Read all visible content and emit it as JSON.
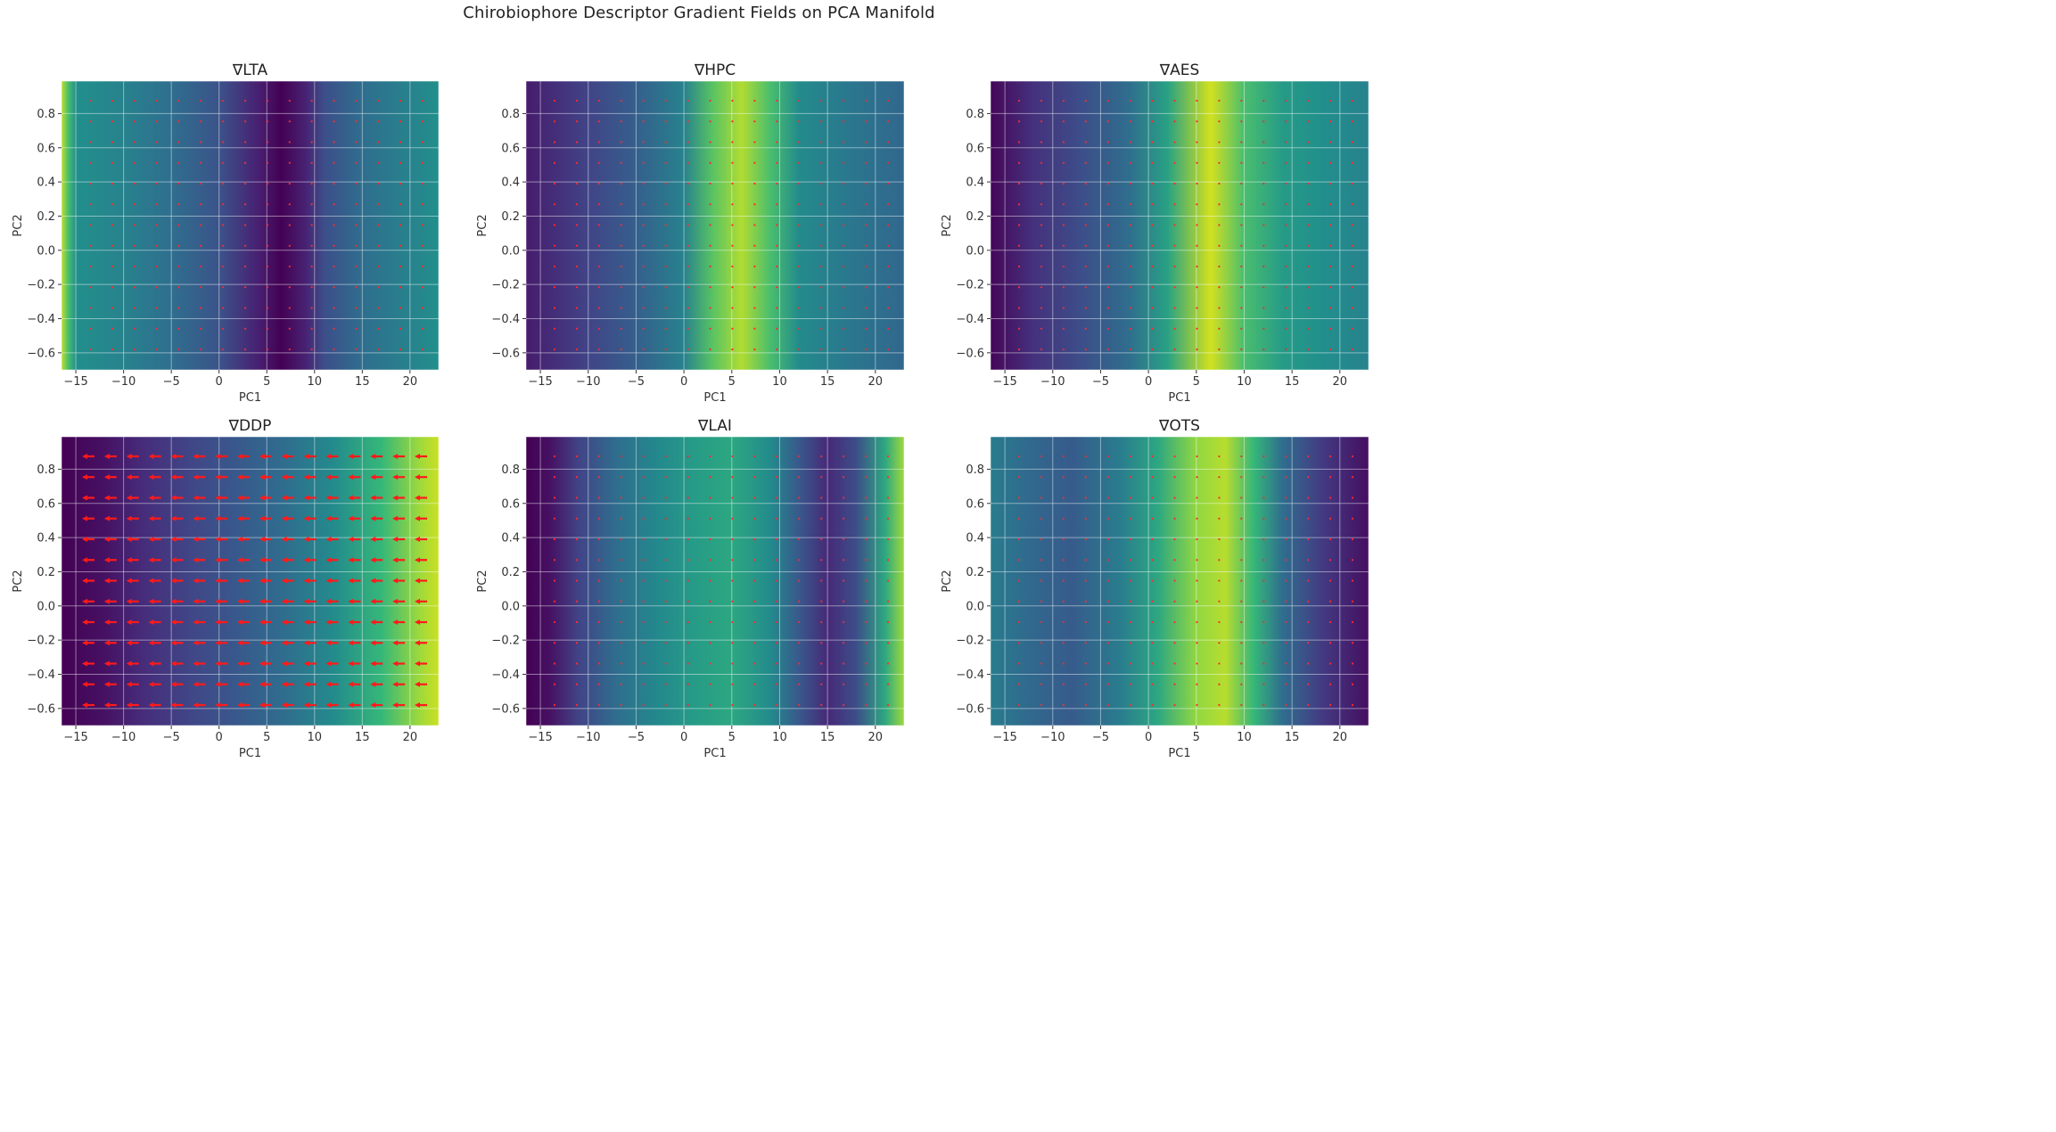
{
  "figure": {
    "title": "Chirobiophore Descriptor Gradient Fields on PCA Manifold"
  },
  "chart_data": [
    {
      "type": "heatmap",
      "title": "∇LTA",
      "xlabel": "PC1",
      "ylabel": "PC2",
      "xlim": [
        -16.5,
        23
      ],
      "ylim": [
        -0.7,
        0.99
      ],
      "x_ticks": [
        "−15",
        "−10",
        "−5",
        "0",
        "5",
        "10",
        "15",
        "20"
      ],
      "y_ticks": [
        "−0.6",
        "−0.4",
        "−0.2",
        "0.0",
        "0.2",
        "0.4",
        "0.6",
        "0.8"
      ],
      "grid": true,
      "colormap": "viridis",
      "intensity_profile": [
        {
          "x": -16.5,
          "value": 0.95
        },
        {
          "x": -15.8,
          "value": 0.78
        },
        {
          "x": -15,
          "value": 0.62
        },
        {
          "x": -10,
          "value": 0.55
        },
        {
          "x": -5,
          "value": 0.45
        },
        {
          "x": 0,
          "value": 0.32
        },
        {
          "x": 4,
          "value": 0.12
        },
        {
          "x": 6.5,
          "value": 0.0
        },
        {
          "x": 9,
          "value": 0.12
        },
        {
          "x": 11,
          "value": 0.3
        },
        {
          "x": 15,
          "value": 0.45
        },
        {
          "x": 20,
          "value": 0.55
        },
        {
          "x": 23,
          "value": 0.62
        }
      ],
      "vectors": "dots"
    },
    {
      "type": "heatmap",
      "title": "∇HPC",
      "xlabel": "PC1",
      "ylabel": "PC2",
      "xlim": [
        -16.5,
        23
      ],
      "ylim": [
        -0.7,
        0.99
      ],
      "x_ticks": [
        "−15",
        "−10",
        "−5",
        "0",
        "5",
        "10",
        "15",
        "20"
      ],
      "y_ticks": [
        "−0.6",
        "−0.4",
        "−0.2",
        "0.0",
        "0.2",
        "0.4",
        "0.6",
        "0.8"
      ],
      "grid": true,
      "colormap": "viridis",
      "intensity_profile": [
        {
          "x": -16.5,
          "value": 0.1
        },
        {
          "x": -10,
          "value": 0.25
        },
        {
          "x": -5,
          "value": 0.38
        },
        {
          "x": 0,
          "value": 0.55
        },
        {
          "x": 3,
          "value": 0.8
        },
        {
          "x": 6,
          "value": 0.93
        },
        {
          "x": 9,
          "value": 0.78
        },
        {
          "x": 12,
          "value": 0.6
        },
        {
          "x": 17,
          "value": 0.5
        },
        {
          "x": 23,
          "value": 0.42
        }
      ],
      "vectors": "dots"
    },
    {
      "type": "heatmap",
      "title": "∇AES",
      "xlabel": "PC1",
      "ylabel": "PC2",
      "xlim": [
        -16.5,
        23
      ],
      "ylim": [
        -0.7,
        0.99
      ],
      "x_ticks": [
        "−15",
        "−10",
        "−5",
        "0",
        "5",
        "10",
        "15",
        "20"
      ],
      "y_ticks": [
        "−0.6",
        "−0.4",
        "−0.2",
        "0.0",
        "0.2",
        "0.4",
        "0.6",
        "0.8"
      ],
      "grid": true,
      "colormap": "viridis",
      "intensity_profile": [
        {
          "x": -16.5,
          "value": 0.02
        },
        {
          "x": -12,
          "value": 0.18
        },
        {
          "x": -7,
          "value": 0.3
        },
        {
          "x": -2,
          "value": 0.45
        },
        {
          "x": 2,
          "value": 0.68
        },
        {
          "x": 6.5,
          "value": 0.98
        },
        {
          "x": 10,
          "value": 0.78
        },
        {
          "x": 14,
          "value": 0.66
        },
        {
          "x": 18,
          "value": 0.62
        },
        {
          "x": 23,
          "value": 0.55
        }
      ],
      "vectors": "dots"
    },
    {
      "type": "heatmap",
      "title": "∇DDP",
      "xlabel": "PC1",
      "ylabel": "PC2",
      "xlim": [
        -16.5,
        23
      ],
      "ylim": [
        -0.7,
        0.99
      ],
      "x_ticks": [
        "−15",
        "−10",
        "−5",
        "0",
        "5",
        "10",
        "15",
        "20"
      ],
      "y_ticks": [
        "−0.6",
        "−0.4",
        "−0.2",
        "0.0",
        "0.2",
        "0.4",
        "0.6",
        "0.8"
      ],
      "grid": true,
      "colormap": "viridis",
      "intensity_profile": [
        {
          "x": -16.5,
          "value": 0.0
        },
        {
          "x": -12,
          "value": 0.06
        },
        {
          "x": -8,
          "value": 0.16
        },
        {
          "x": -3,
          "value": 0.26
        },
        {
          "x": 2,
          "value": 0.35
        },
        {
          "x": 7,
          "value": 0.45
        },
        {
          "x": 12,
          "value": 0.6
        },
        {
          "x": 17,
          "value": 0.75
        },
        {
          "x": 21,
          "value": 0.9
        },
        {
          "x": 23,
          "value": 0.97
        }
      ],
      "vectors": "arrows"
    },
    {
      "type": "heatmap",
      "title": "∇LAI",
      "xlabel": "PC1",
      "ylabel": "PC2",
      "xlim": [
        -16.5,
        23
      ],
      "ylim": [
        -0.7,
        0.99
      ],
      "x_ticks": [
        "−15",
        "−10",
        "−5",
        "0",
        "5",
        "10",
        "15",
        "20"
      ],
      "y_ticks": [
        "−0.6",
        "−0.4",
        "−0.2",
        "0.0",
        "0.2",
        "0.4",
        "0.6",
        "0.8"
      ],
      "grid": true,
      "colormap": "viridis",
      "intensity_profile": [
        {
          "x": -16.5,
          "value": 0.0
        },
        {
          "x": -14,
          "value": 0.06
        },
        {
          "x": -11,
          "value": 0.25
        },
        {
          "x": -7,
          "value": 0.45
        },
        {
          "x": -3,
          "value": 0.58
        },
        {
          "x": 1,
          "value": 0.66
        },
        {
          "x": 5,
          "value": 0.7
        },
        {
          "x": 9,
          "value": 0.6
        },
        {
          "x": 12,
          "value": 0.35
        },
        {
          "x": 15,
          "value": 0.15
        },
        {
          "x": 18,
          "value": 0.3
        },
        {
          "x": 21,
          "value": 0.7
        },
        {
          "x": 23,
          "value": 0.9
        }
      ],
      "vectors": "dots"
    },
    {
      "type": "heatmap",
      "title": "∇OTS",
      "xlabel": "PC1",
      "ylabel": "PC2",
      "xlim": [
        -16.5,
        23
      ],
      "ylim": [
        -0.7,
        0.99
      ],
      "x_ticks": [
        "−15",
        "−10",
        "−5",
        "0",
        "5",
        "10",
        "15",
        "20"
      ],
      "y_ticks": [
        "−0.6",
        "−0.4",
        "−0.2",
        "0.0",
        "0.2",
        "0.4",
        "0.6",
        "0.8"
      ],
      "grid": true,
      "colormap": "viridis",
      "intensity_profile": [
        {
          "x": -16.5,
          "value": 0.52
        },
        {
          "x": -12,
          "value": 0.42
        },
        {
          "x": -8,
          "value": 0.36
        },
        {
          "x": -3,
          "value": 0.52
        },
        {
          "x": 1,
          "value": 0.7
        },
        {
          "x": 5,
          "value": 0.88
        },
        {
          "x": 8,
          "value": 0.94
        },
        {
          "x": 11,
          "value": 0.75
        },
        {
          "x": 14,
          "value": 0.45
        },
        {
          "x": 18,
          "value": 0.22
        },
        {
          "x": 23,
          "value": 0.05
        }
      ],
      "vectors": "dots"
    }
  ]
}
